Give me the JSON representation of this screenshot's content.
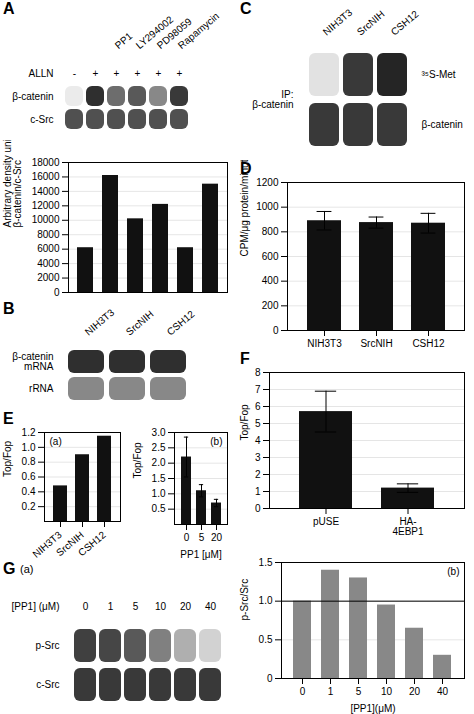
{
  "chart_data": [
    {
      "type": "heatmap",
      "title": "A",
      "categories": [
        null,
        null,
        "PP1",
        "LY294002",
        "PD98059",
        "Rapamycin"
      ],
      "lane_labels": {
        "name": "ALLN",
        "labels": [
          "-",
          "+",
          "+",
          "+",
          "+",
          "+"
        ]
      },
      "series": [
        {
          "name": "β-catenin",
          "values": [
            0.15,
            0.85,
            0.65,
            0.72,
            0.55,
            0.82
          ]
        },
        {
          "name": "c-Src",
          "values": [
            0.75,
            0.75,
            0.75,
            0.75,
            0.75,
            0.75
          ]
        }
      ]
    },
    {
      "type": "bar",
      "categories": [
        null,
        null,
        null,
        null,
        null,
        null
      ],
      "values": [
        6200,
        16200,
        10200,
        12200,
        6200,
        15000
      ],
      "color": "#111111",
      "ylabel": "Arbitrary density units\nβ-catenin/c-Src",
      "ylim": [
        0,
        18000
      ],
      "yticks": [
        0,
        2000,
        4000,
        6000,
        8000,
        10000,
        12000,
        14000,
        16000,
        18000
      ],
      "grid": true,
      "tick_labels": "y"
    },
    {
      "type": "heatmap",
      "title": "B",
      "categories": [
        "NIH3T3",
        "SrcNIH",
        "CSH12"
      ],
      "series": [
        {
          "name": "β-catenin\nmRNA",
          "values": [
            0.85,
            0.85,
            0.85
          ]
        },
        {
          "name": "rRNA",
          "values": [
            0.55,
            0.55,
            0.55
          ]
        }
      ]
    },
    {
      "type": "heatmap",
      "title": "C",
      "categories": [
        "NIH3T3",
        "SrcNIH",
        "CSH12"
      ],
      "ylabel": "IP:\nβ-catenin",
      "series": [
        {
          "name": "³⁵S-Met",
          "values": [
            0.2,
            0.82,
            0.88
          ]
        },
        {
          "name": "β-catenin",
          "values": [
            0.82,
            0.82,
            0.82
          ]
        }
      ]
    },
    {
      "type": "bar",
      "title": "D",
      "categories": [
        "NIH3T3",
        "SrcNIH",
        "CSH12"
      ],
      "values": [
        890,
        875,
        870
      ],
      "errors": [
        75,
        45,
        80
      ],
      "color": "#111111",
      "ylabel": "CPM/μg protein/minute",
      "ylim": [
        0,
        1200
      ],
      "yticks": [
        0,
        200,
        400,
        600,
        800,
        1000,
        1200
      ],
      "grid": true
    },
    {
      "type": "bar",
      "title": "E",
      "annotations": [
        "(a)"
      ],
      "categories": [
        "NIH3T3",
        "SrcNIH",
        "CSH12"
      ],
      "values": [
        0.48,
        0.9,
        1.15
      ],
      "color": "#111111",
      "ylabel": "Top/Fop",
      "ylim": [
        0,
        1.2
      ],
      "yticks": [
        0.2,
        0.4,
        0.6,
        0.8,
        {
          "value": 1.0,
          "label": "1.0"
        },
        1.2
      ],
      "grid": true
    },
    {
      "type": "bar",
      "annotations": [
        "(b)"
      ],
      "categories": [
        "0",
        "5",
        "20"
      ],
      "values": [
        2.2,
        1.1,
        0.7
      ],
      "errors": [
        0.65,
        0.2,
        0.12
      ],
      "color": "#111111",
      "ylabel": "Top/Fop",
      "xlabel": "PP1 [μM]",
      "ylim": [
        0,
        3
      ],
      "yticks": [
        0.5,
        {
          "value": 1.0,
          "label": "1.0"
        },
        1.5,
        {
          "value": 2.0,
          "label": "2.0"
        },
        2.5,
        {
          "value": 3.0,
          "label": "3.0"
        }
      ],
      "grid": true
    },
    {
      "type": "bar",
      "title": "F",
      "categories": [
        "pUSE",
        "HA-\n4EBP1"
      ],
      "values": [
        5.7,
        1.2
      ],
      "errors": [
        1.2,
        0.25
      ],
      "color": "#111111",
      "ylabel": "Top/Fop",
      "ylim": [
        0,
        8
      ],
      "yticks": [
        0,
        1,
        2,
        3,
        4,
        5,
        6,
        7,
        8
      ],
      "grid": true
    },
    {
      "type": "heatmap",
      "title": "G",
      "annotations": [
        "(a)"
      ],
      "lane_labels": {
        "name": "[PP1] (μM)",
        "labels": [
          "0",
          "1",
          "5",
          "10",
          "20",
          "40"
        ]
      },
      "series": [
        {
          "name": "p-Src",
          "values": [
            0.8,
            0.78,
            0.72,
            0.58,
            0.42,
            0.28
          ]
        },
        {
          "name": "c-Src",
          "values": [
            0.82,
            0.82,
            0.82,
            0.82,
            0.82,
            0.82
          ]
        }
      ]
    },
    {
      "type": "bar",
      "annotations": [
        "(b)"
      ],
      "categories": [
        "0",
        "1",
        "5",
        "10",
        "20",
        "40"
      ],
      "values": [
        1.0,
        1.4,
        1.3,
        0.95,
        0.65,
        0.3
      ],
      "color": "#888888",
      "hline": 1.0,
      "ylabel": "p-Src/Src",
      "xlabel": "[PP1](μM)",
      "ylim": [
        0,
        1.5
      ],
      "yticks": [
        0,
        0.5,
        {
          "value": 1.0,
          "label": "1.0"
        },
        1.5
      ],
      "grid": true
    }
  ]
}
